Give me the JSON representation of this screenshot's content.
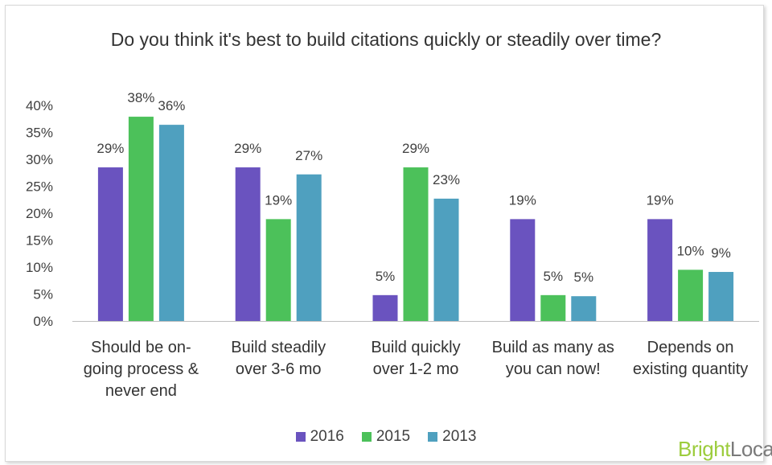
{
  "chart_data": {
    "type": "bar",
    "title": "Do you think it's best to build citations quickly or steadily over time?",
    "categories": [
      [
        "Should be on-",
        "going process &",
        "never end"
      ],
      [
        "Build steadily",
        "over 3-6 mo"
      ],
      [
        "Build quickly",
        "over 1-2 mo"
      ],
      [
        "Build as many as",
        "you can now!"
      ],
      [
        "Depends on",
        "existing quantity"
      ]
    ],
    "series": [
      {
        "name": "2016",
        "color": "#6a53bf",
        "values": [
          28.5,
          28.5,
          4.8,
          18.9,
          18.9
        ],
        "labels": [
          "29%",
          "29%",
          "5%",
          "19%",
          "19%"
        ]
      },
      {
        "name": "2015",
        "color": "#4cc15a",
        "values": [
          37.9,
          18.9,
          28.5,
          4.8,
          9.5
        ],
        "labels": [
          "38%",
          "19%",
          "29%",
          "5%",
          "10%"
        ]
      },
      {
        "name": "2013",
        "color": "#4fa0bf",
        "values": [
          36.4,
          27.2,
          22.7,
          4.6,
          9.1
        ],
        "labels": [
          "36%",
          "27%",
          "23%",
          "5%",
          "9%"
        ]
      }
    ],
    "yticks": [
      "0%",
      "5%",
      "10%",
      "15%",
      "20%",
      "25%",
      "30%",
      "35%",
      "40%"
    ],
    "ylim": [
      0,
      40
    ],
    "grid": false,
    "legend": "bottom"
  },
  "brand": {
    "part1": "Bright",
    "part2": "Local"
  }
}
